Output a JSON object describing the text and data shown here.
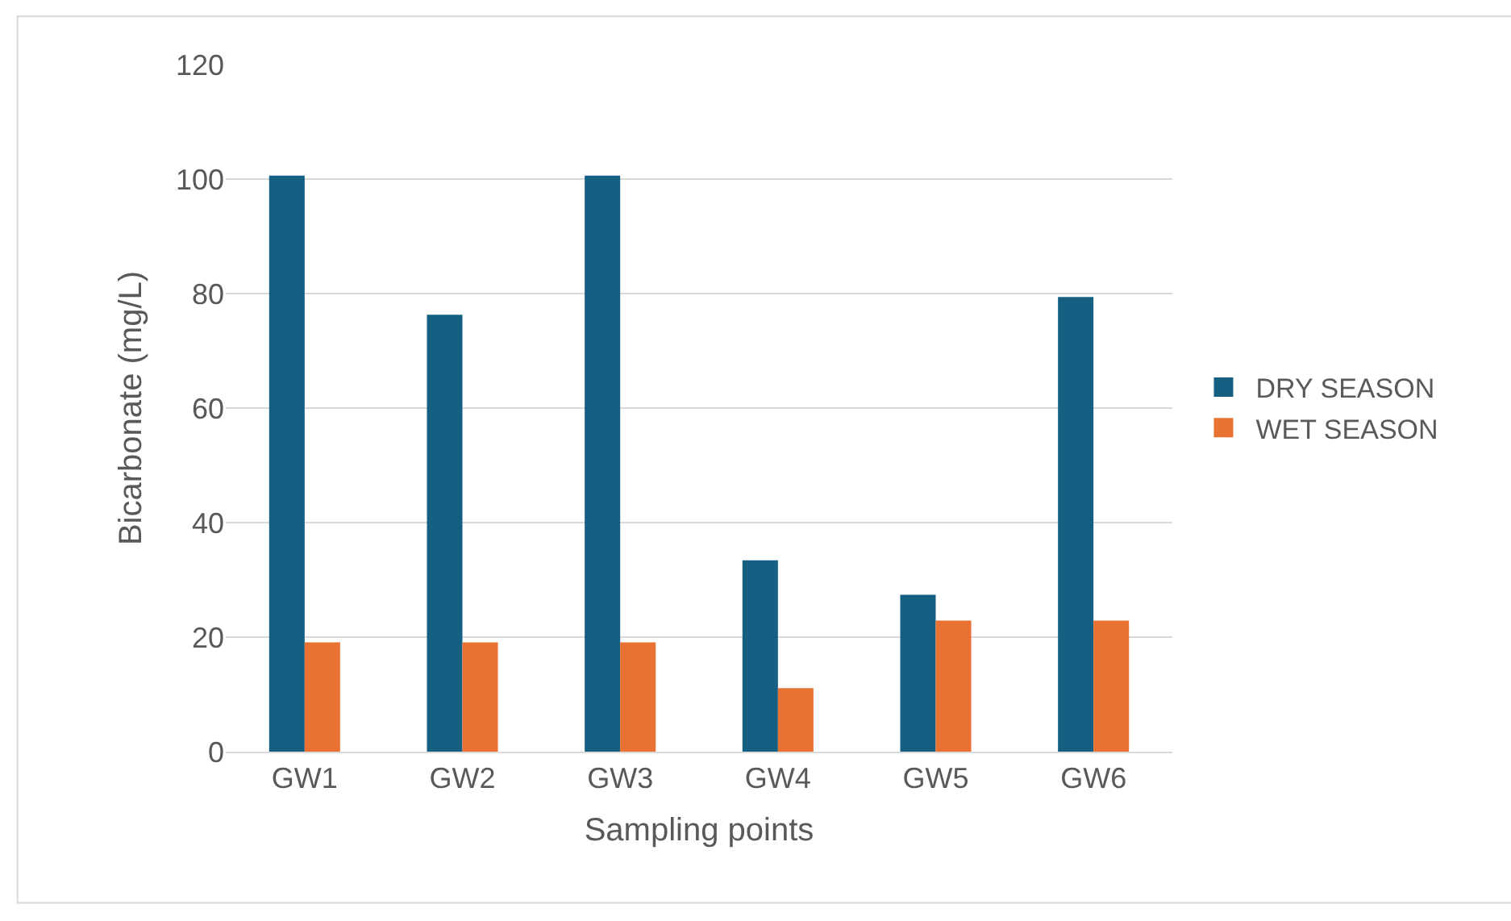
{
  "chart_data": {
    "type": "bar",
    "xlabel": "Sampling points",
    "ylabel": "Bicarbonate (mg/L)",
    "categories": [
      "GW1",
      "GW2",
      "GW3",
      "GW4",
      "GW5",
      "GW6"
    ],
    "series": [
      {
        "name": "DRY SEASON",
        "color": "#156082",
        "values": [
          100.6,
          76.3,
          100.6,
          33.4,
          27.4,
          79.4
        ]
      },
      {
        "name": "WET SEASON",
        "color": "#e97132",
        "values": [
          19.1,
          19.1,
          19.1,
          11.1,
          22.9,
          22.9
        ]
      }
    ],
    "ylim": [
      0,
      120
    ],
    "yticks": [
      0,
      20,
      40,
      60,
      80,
      100,
      120
    ],
    "grid": "y",
    "legend": "right"
  }
}
